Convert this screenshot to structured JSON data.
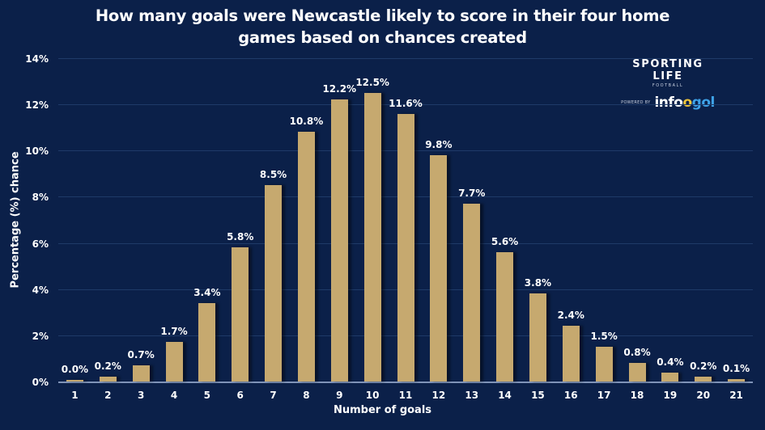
{
  "header": {
    "title_line1": "How many goals were Newcastle likely to score in their four home",
    "title_line2": "games based on chances created"
  },
  "logo": {
    "brand": "SPORTING LIFE",
    "sub": "FOOTBALL",
    "powered_by": "POWERED BY",
    "partner_a": "info",
    "partner_o": "o",
    "partner_b": "gol"
  },
  "colors": {
    "background": "#0b2049",
    "bar": "#c6a96f",
    "text": "#ffffff",
    "grid": "#1f3a68"
  },
  "axes": {
    "ylabel": "Percentage (%) chance",
    "xlabel": "Number of goals",
    "yticks": [
      "0%",
      "2%",
      "4%",
      "6%",
      "8%",
      "10%",
      "12%",
      "14%"
    ]
  },
  "chart_data": {
    "type": "bar",
    "title": "How many goals were Newcastle likely to score in their four home games based on chances created",
    "xlabel": "Number of goals",
    "ylabel": "Percentage (%) chance",
    "ylim": [
      0,
      14
    ],
    "grid": true,
    "legend": null,
    "categories": [
      "1",
      "2",
      "3",
      "4",
      "5",
      "6",
      "7",
      "8",
      "9",
      "10",
      "11",
      "12",
      "13",
      "14",
      "15",
      "16",
      "17",
      "18",
      "19",
      "20",
      "21"
    ],
    "values": [
      0.0,
      0.2,
      0.7,
      1.7,
      3.4,
      5.8,
      8.5,
      10.8,
      12.2,
      12.5,
      11.6,
      9.8,
      7.7,
      5.6,
      3.8,
      2.4,
      1.5,
      0.8,
      0.4,
      0.2,
      0.1
    ],
    "labels": [
      "0.0%",
      "0.2%",
      "0.7%",
      "1.7%",
      "3.4%",
      "5.8%",
      "8.5%",
      "10.8%",
      "12.2%",
      "12.5%",
      "11.6%",
      "9.8%",
      "7.7%",
      "5.6%",
      "3.8%",
      "2.4%",
      "1.5%",
      "0.8%",
      "0.4%",
      "0.2%",
      "0.1%"
    ]
  }
}
